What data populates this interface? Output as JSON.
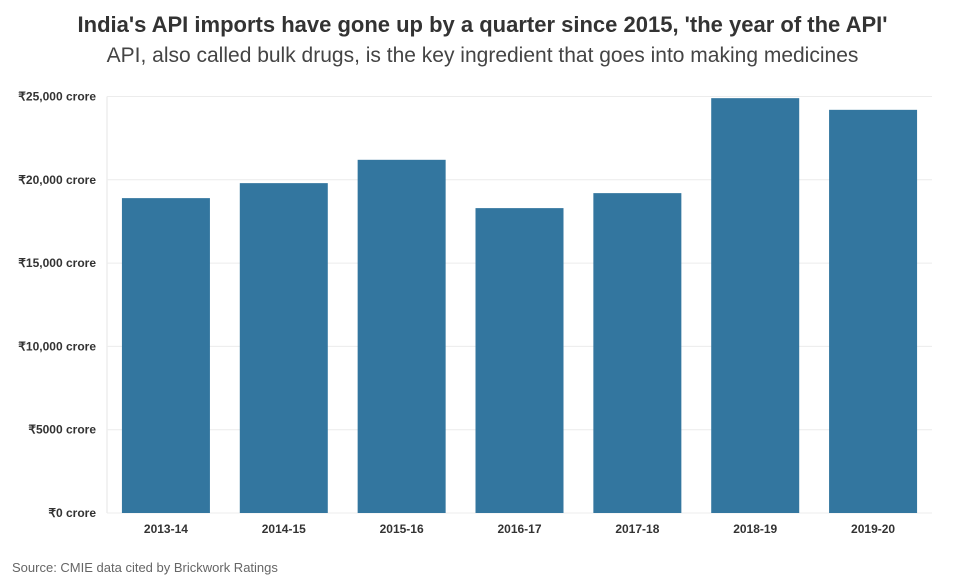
{
  "chart_data": {
    "type": "bar",
    "title": "India's API imports have gone up by a quarter since 2015, 'the year of the API'",
    "subtitle": "API, also called bulk drugs, is the key ingredient that goes into making medicines",
    "categories": [
      "2013-14",
      "2014-15",
      "2015-16",
      "2016-17",
      "2017-18",
      "2018-19",
      "2019-20"
    ],
    "values": [
      18900,
      19800,
      21200,
      18300,
      19200,
      24900,
      24200
    ],
    "ylim": [
      0,
      25000
    ],
    "yticks": [
      0,
      5000,
      10000,
      15000,
      20000,
      25000
    ],
    "ytick_labels": [
      "₹0 crore",
      "₹5000 crore",
      "₹10,000 crore",
      "₹15,000 crore",
      "₹20,000 crore",
      "₹25,000 crore"
    ],
    "xlabel": "",
    "ylabel": "",
    "grid": true,
    "bar_color": "#33769f",
    "source": "Source: CMIE data cited by Brickwork Ratings"
  }
}
